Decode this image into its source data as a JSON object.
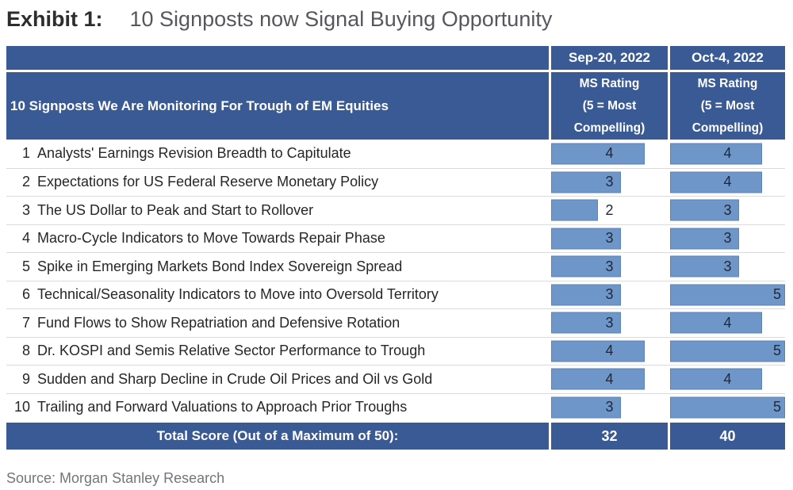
{
  "title": {
    "exhibit": "Exhibit 1:",
    "text": "10 Signposts now Signal Buying Opportunity"
  },
  "source": "Source: Morgan Stanley Research",
  "colors": {
    "header_blue": "#3a5a96",
    "bar_fill": "#6e96c8",
    "bar_border": "#5b83b4",
    "digit": "#1f2838",
    "row_line": "#dadada"
  },
  "table": {
    "row_header": "10 Signposts We Are Monitoring For Trough of EM Equities",
    "col_sep": {
      "date": "Sep-20, 2022",
      "subtitle": "MS Rating\n(5 = Most\nCompelling)"
    },
    "col_oct": {
      "date": "Oct-4, 2022",
      "subtitle": "MS Rating\n(5 = Most\nCompelling)"
    },
    "scale_max": 5,
    "rows": [
      {
        "num": "1",
        "label": "Analysts' Earnings Revision Breadth to Capitulate",
        "sep": 4,
        "oct": 4
      },
      {
        "num": "2",
        "label": "Expectations for US Federal Reserve Monetary Policy",
        "sep": 3,
        "oct": 4
      },
      {
        "num": "3",
        "label": "The US Dollar to Peak and Start to Rollover",
        "sep": 2,
        "oct": 3
      },
      {
        "num": "4",
        "label": "Macro-Cycle Indicators to Move Towards Repair Phase",
        "sep": 3,
        "oct": 3
      },
      {
        "num": "5",
        "label": "Spike in Emerging Markets Bond Index Sovereign Spread",
        "sep": 3,
        "oct": 3
      },
      {
        "num": "6",
        "label": "Technical/Seasonality Indicators to Move into Oversold Territory",
        "sep": 3,
        "oct": 5
      },
      {
        "num": "7",
        "label": "Fund Flows to Show Repatriation and Defensive Rotation",
        "sep": 3,
        "oct": 4
      },
      {
        "num": "8",
        "label": "Dr. KOSPI and Semis Relative Sector Performance to Trough",
        "sep": 4,
        "oct": 5
      },
      {
        "num": "9",
        "label": "Sudden and Sharp Decline in Crude Oil Prices and Oil vs Gold",
        "sep": 4,
        "oct": 4
      },
      {
        "num": "10",
        "label": "Trailing and Forward Valuations to Approach Prior Troughs",
        "sep": 3,
        "oct": 5
      }
    ],
    "total": {
      "label": "Total Score (Out of a Maximum of 50):",
      "sep": "32",
      "oct": "40"
    }
  },
  "chart_data": {
    "type": "table",
    "title": "Exhibit 1: 10 Signposts now Signal Buying Opportunity",
    "row_header": "10 Signposts We Are Monitoring For Trough of EM Equities",
    "value_scale": "MS Rating (5 = Most Compelling)",
    "max_value": 5,
    "categories": [
      "Analysts' Earnings Revision Breadth to Capitulate",
      "Expectations for US Federal Reserve Monetary Policy",
      "The US Dollar to Peak and Start to Rollover",
      "Macro-Cycle Indicators to Move Towards Repair Phase",
      "Spike in Emerging Markets Bond Index Sovereign Spread",
      "Technical/Seasonality Indicators to Move into Oversold Territory",
      "Fund Flows to Show Repatriation and Defensive Rotation",
      "Dr. KOSPI and Semis Relative Sector Performance to Trough",
      "Sudden and Sharp Decline in Crude Oil Prices and Oil vs Gold",
      "Trailing and Forward Valuations to Approach Prior Troughs"
    ],
    "series": [
      {
        "name": "Sep-20, 2022",
        "values": [
          4,
          3,
          2,
          3,
          3,
          3,
          3,
          4,
          4,
          3
        ],
        "total": 32
      },
      {
        "name": "Oct-4, 2022",
        "values": [
          4,
          4,
          3,
          3,
          3,
          5,
          4,
          5,
          4,
          5
        ],
        "total": 40
      }
    ],
    "total_label": "Total Score (Out of a Maximum of 50):",
    "source": "Source: Morgan Stanley Research"
  }
}
